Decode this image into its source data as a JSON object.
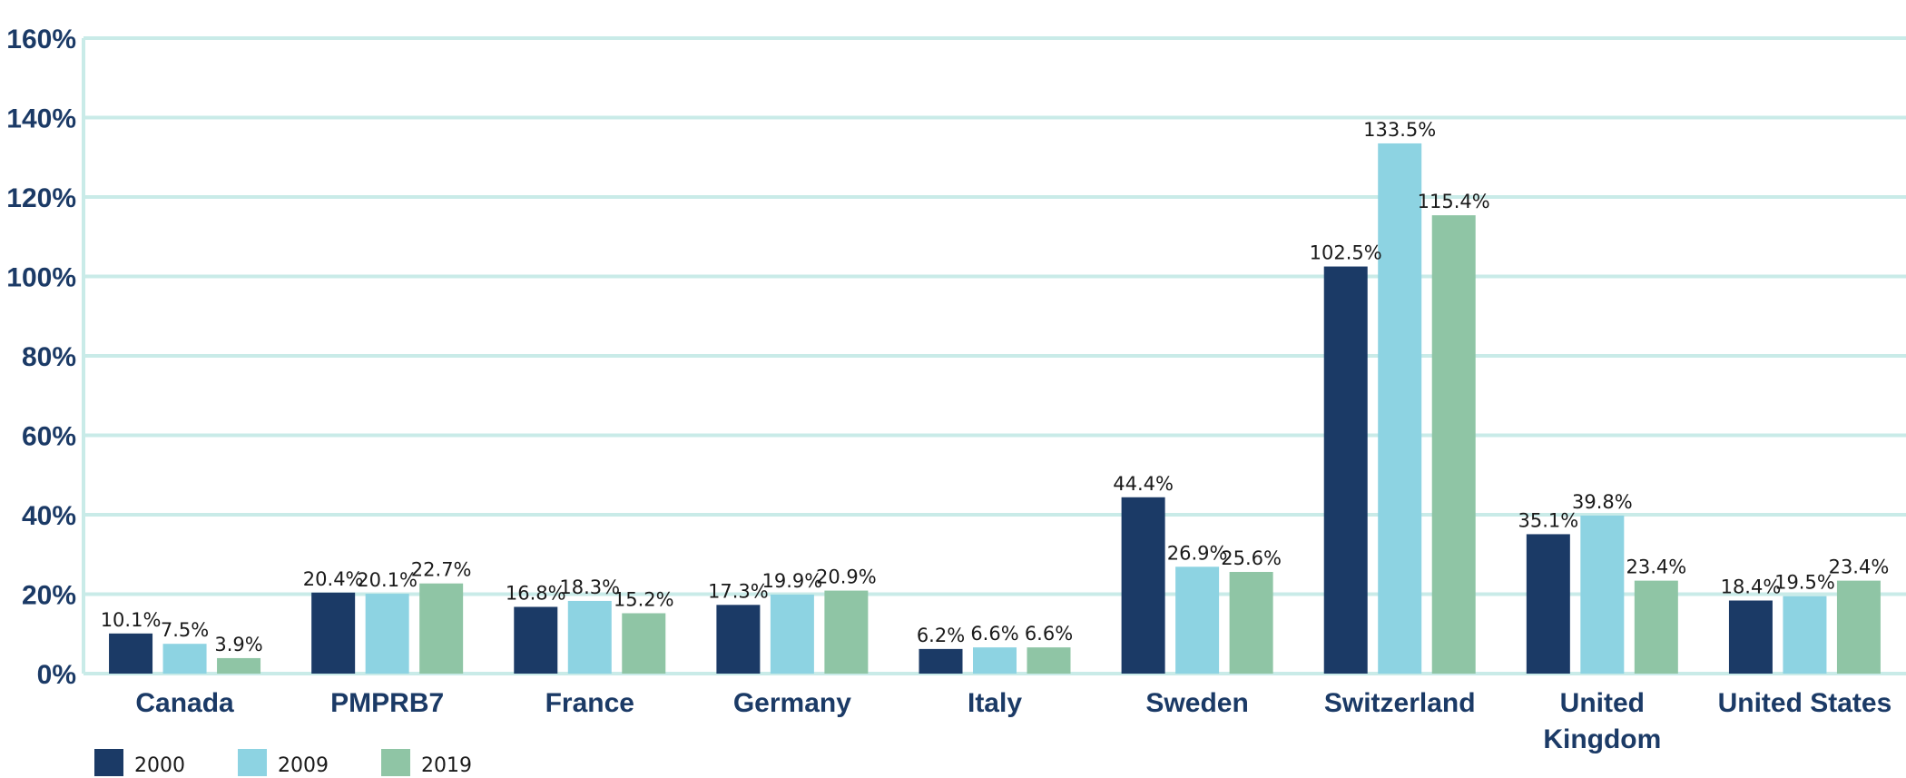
{
  "chart_data": {
    "type": "bar",
    "categories": [
      [
        "Canada"
      ],
      [
        "PMPRB7"
      ],
      [
        "France"
      ],
      [
        "Germany"
      ],
      [
        "Italy"
      ],
      [
        "Sweden"
      ],
      [
        "Switzerland"
      ],
      [
        "United",
        "Kingdom"
      ],
      [
        "United States"
      ]
    ],
    "series": [
      {
        "name": "2000",
        "color": "#1b3a66",
        "values": [
          10.1,
          20.4,
          16.8,
          17.3,
          6.2,
          44.4,
          102.5,
          35.1,
          18.4
        ],
        "labels": [
          "10.1%",
          "20.4%",
          "16.8%",
          "17.3%",
          "6.2%",
          "44.4%",
          "102.5%",
          "35.1%",
          "18.4%"
        ]
      },
      {
        "name": "2009",
        "color": "#8dd3e2",
        "values": [
          7.5,
          20.1,
          18.3,
          19.9,
          6.6,
          26.9,
          133.5,
          39.8,
          19.5
        ],
        "labels": [
          "7.5%",
          "20.1%",
          "18.3%",
          "19.9%",
          "6.6%",
          "26.9%",
          "133.5%",
          "39.8%",
          "19.5%"
        ]
      },
      {
        "name": "2019",
        "color": "#8fc5a5",
        "values": [
          3.9,
          22.7,
          15.2,
          20.9,
          6.6,
          25.6,
          115.4,
          23.4,
          23.4
        ],
        "labels": [
          "3.9%",
          "22.7%",
          "15.2%",
          "20.9%",
          "6.6%",
          "25.6%",
          "115.4%",
          "23.4%",
          "23.4%"
        ]
      }
    ],
    "yticks": [
      0,
      20,
      40,
      60,
      80,
      100,
      120,
      140,
      160
    ],
    "ytick_labels": [
      "0%",
      "20%",
      "40%",
      "60%",
      "80%",
      "100%",
      "120%",
      "140%",
      "160%"
    ],
    "ylim": [
      0,
      160
    ],
    "title": "",
    "xlabel": "",
    "ylabel": "",
    "grid": true,
    "legend_position": "bottom-left"
  }
}
